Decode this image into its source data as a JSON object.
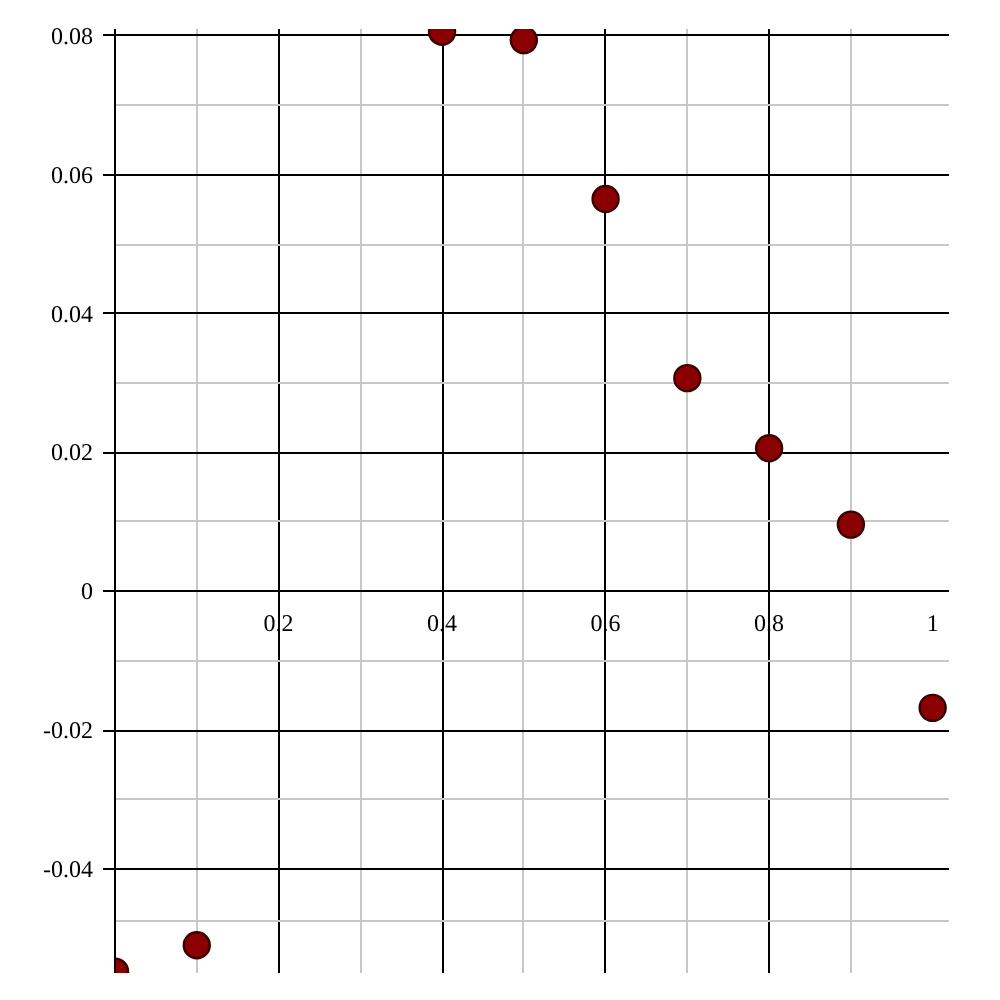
{
  "chart_data": {
    "type": "scatter",
    "x": [
      0,
      0.1,
      0.4,
      0.5,
      0.6,
      0.7,
      0.8,
      0.9,
      1.0
    ],
    "values": [
      -0.0548,
      -0.051,
      0.0806,
      0.0794,
      0.0565,
      0.0307,
      0.0206,
      0.0096,
      -0.0168
    ],
    "color": "#8b0000",
    "marker": "circle",
    "grid": true,
    "xlim": [
      0,
      1.02
    ],
    "ylim": [
      -0.055,
      0.081
    ],
    "xticks": [
      0.2,
      0.4,
      0.6,
      0.8,
      1
    ],
    "yticks": [
      -0.04,
      -0.02,
      0,
      0.02,
      0.04,
      0.06,
      0.08
    ]
  }
}
